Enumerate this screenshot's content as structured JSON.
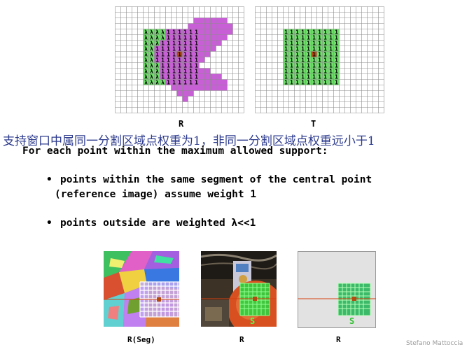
{
  "grid_R": {
    "label": "R",
    "one_symbol": "1",
    "lambda_symbol": "λ",
    "colors": {
      "segment": "#c85fd6",
      "window": "#6ee06a",
      "center": "#b34a10",
      "grid": "#8c8c8c"
    }
  },
  "grid_T": {
    "label": "T",
    "one_symbol": "1",
    "colors": {
      "window": "#6ee06a",
      "center": "#b34a10",
      "grid": "#8c8c8c"
    }
  },
  "chinese_caption": "支持窗口中属同一分割区域点权重为1，非同一分割区域点权重远小于1",
  "intro_line": "For each point within the maximum allowed support:",
  "bullets": [
    {
      "marker": "•",
      "line1": "points within the same segment of the central point",
      "line2": "(reference image) assume weight 1"
    },
    {
      "marker": "•",
      "line1": "points outside are weighted λ<<1"
    }
  ],
  "thumbnails": [
    {
      "label": "R(Seg)",
      "overlay_text": ""
    },
    {
      "label": "R",
      "overlay_text": "S"
    },
    {
      "label": "R",
      "overlay_text": "S"
    }
  ],
  "footer": "Stefano Mattoccia"
}
